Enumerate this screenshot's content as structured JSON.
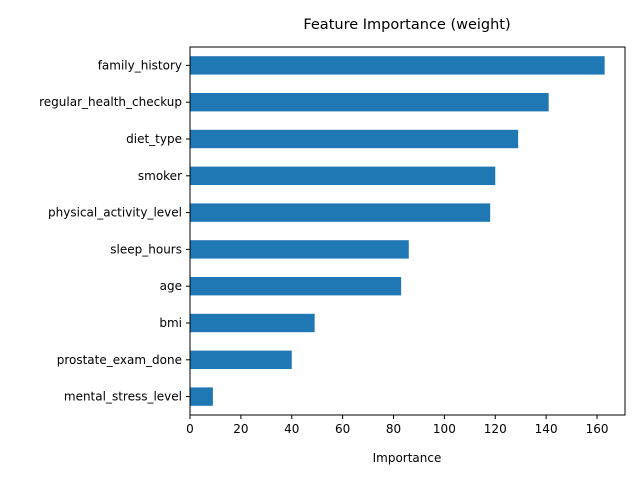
{
  "chart_data": {
    "type": "bar",
    "orientation": "horizontal",
    "title": "Feature Importance (weight)",
    "xlabel": "Importance",
    "ylabel": "",
    "categories": [
      "family_history",
      "regular_health_checkup",
      "diet_type",
      "smoker",
      "physical_activity_level",
      "sleep_hours",
      "age",
      "bmi",
      "prostate_exam_done",
      "mental_stress_level"
    ],
    "values": [
      163,
      141,
      129,
      120,
      118,
      86,
      83,
      49,
      40,
      9
    ],
    "xlim": [
      0,
      171
    ],
    "xticks": [
      0,
      20,
      40,
      60,
      80,
      100,
      120,
      140,
      160
    ],
    "grid": false,
    "bar_color": "#1f77b4"
  }
}
